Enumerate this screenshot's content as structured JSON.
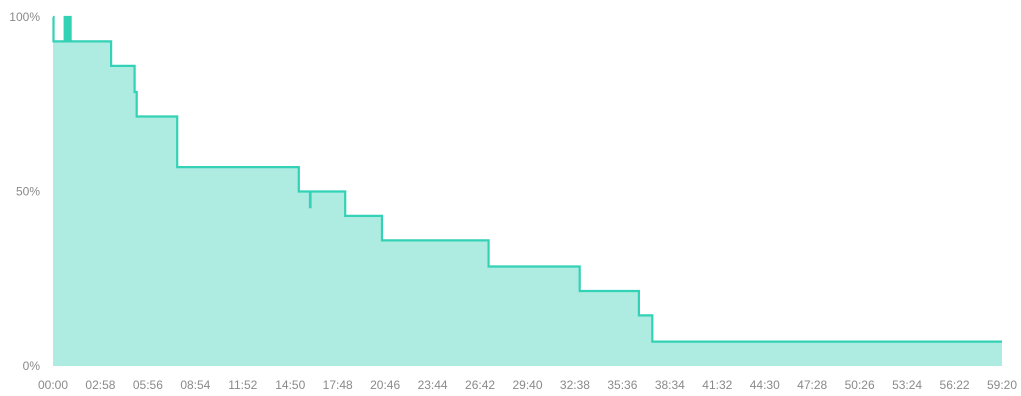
{
  "chart_data": {
    "type": "area",
    "title": "",
    "xlabel": "",
    "ylabel": "",
    "y_unit": "%",
    "ylim": [
      0,
      100
    ],
    "xlim": [
      0,
      3560
    ],
    "y_ticks": [
      {
        "value": 100,
        "label": "100%"
      },
      {
        "value": 50,
        "label": "50%"
      },
      {
        "value": 0,
        "label": "0%"
      }
    ],
    "x_ticks": [
      {
        "value": 0,
        "label": "00:00"
      },
      {
        "value": 178,
        "label": "02:58"
      },
      {
        "value": 356,
        "label": "05:56"
      },
      {
        "value": 534,
        "label": "08:54"
      },
      {
        "value": 712,
        "label": "11:52"
      },
      {
        "value": 890,
        "label": "14:50"
      },
      {
        "value": 1068,
        "label": "17:48"
      },
      {
        "value": 1246,
        "label": "20:46"
      },
      {
        "value": 1424,
        "label": "23:44"
      },
      {
        "value": 1602,
        "label": "26:42"
      },
      {
        "value": 1780,
        "label": "29:40"
      },
      {
        "value": 1958,
        "label": "32:38"
      },
      {
        "value": 2136,
        "label": "35:36"
      },
      {
        "value": 2314,
        "label": "38:34"
      },
      {
        "value": 2492,
        "label": "41:32"
      },
      {
        "value": 2670,
        "label": "44:30"
      },
      {
        "value": 2848,
        "label": "47:28"
      },
      {
        "value": 3026,
        "label": "50:26"
      },
      {
        "value": 3204,
        "label": "53:24"
      },
      {
        "value": 3382,
        "label": "56:22"
      },
      {
        "value": 3560,
        "label": "59:20"
      }
    ],
    "grid": false,
    "colors": {
      "line": "#33d1b5",
      "fill": "#aeebe0",
      "text": "#8a8a8a"
    },
    "series": [
      {
        "step": true,
        "points": [
          [
            0,
            100
          ],
          [
            2,
            93
          ],
          [
            42,
            93
          ],
          [
            44,
            100
          ],
          [
            46,
            100
          ],
          [
            48,
            93
          ],
          [
            52,
            93
          ],
          [
            54,
            100
          ],
          [
            58,
            100
          ],
          [
            60,
            93
          ],
          [
            62,
            100
          ],
          [
            64,
            100
          ],
          [
            66,
            93
          ],
          [
            216,
            93
          ],
          [
            218,
            86
          ],
          [
            304,
            86
          ],
          [
            306,
            78.5
          ],
          [
            312,
            78.5
          ],
          [
            314,
            71.5
          ],
          [
            464,
            71.5
          ],
          [
            466,
            57
          ],
          [
            920,
            57
          ],
          [
            922,
            50
          ],
          [
            962,
            50
          ],
          [
            964,
            45.5
          ],
          [
            966,
            50
          ],
          [
            1094,
            50
          ],
          [
            1096,
            43
          ],
          [
            1232,
            43
          ],
          [
            1234,
            36
          ],
          [
            1632,
            36
          ],
          [
            1634,
            28.5
          ],
          [
            1974,
            28.5
          ],
          [
            1976,
            21.5
          ],
          [
            2196,
            21.5
          ],
          [
            2198,
            14.5
          ],
          [
            2246,
            14.5
          ],
          [
            2248,
            7
          ],
          [
            3560,
            7
          ]
        ]
      }
    ]
  }
}
